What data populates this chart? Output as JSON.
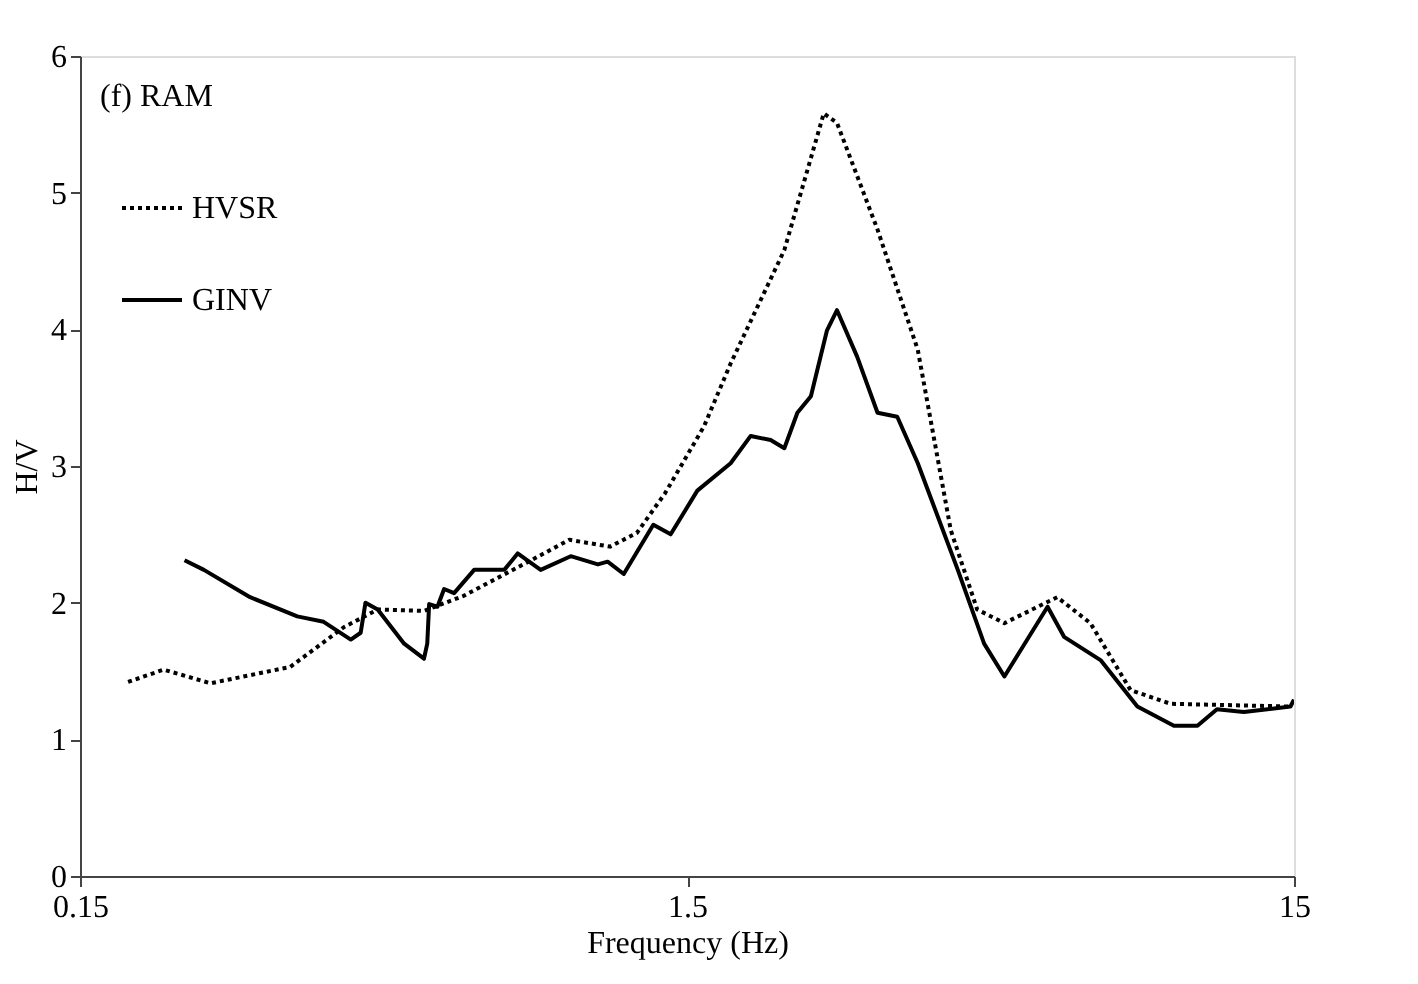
{
  "chart_data": {
    "type": "line",
    "xlabel": "Frequency (Hz)",
    "ylabel": "H/V",
    "annotations": [
      "(f) RAM"
    ],
    "log": "x",
    "xlim": [
      0.15,
      15
    ],
    "xticks": [
      0.15,
      1.5,
      15
    ],
    "ylim": [
      0,
      6
    ],
    "yticks": [
      0,
      1,
      2,
      3,
      4,
      5,
      6
    ],
    "grid": false,
    "legend": "top left",
    "series": [
      {
        "name": "HVSR",
        "color": "#000000",
        "line_style": "dotted",
        "x": [
          0.18,
          0.206,
          0.246,
          0.333,
          0.408,
          0.464,
          0.553,
          0.643,
          0.83,
          0.96,
          1.12,
          1.24,
          1.38,
          1.6,
          1.77,
          2.17,
          2.52,
          2.65,
          3.09,
          3.6,
          4.08,
          4.51,
          5.0,
          6.11,
          6.93,
          8.07,
          9.39,
          14.8
        ],
        "values": [
          1.42,
          1.51,
          1.41,
          1.53,
          1.82,
          1.95,
          1.94,
          2.05,
          2.31,
          2.46,
          2.41,
          2.51,
          2.8,
          3.29,
          3.75,
          4.58,
          5.58,
          5.51,
          4.73,
          3.85,
          2.53,
          1.95,
          1.85,
          2.04,
          1.85,
          1.36,
          1.26,
          1.24
        ]
      },
      {
        "name": "GINV",
        "color": "#000000",
        "line_style": "solid",
        "x": [
          0.223,
          0.24,
          0.286,
          0.342,
          0.378,
          0.419,
          0.435,
          0.443,
          0.464,
          0.513,
          0.553,
          0.56,
          0.564,
          0.582,
          0.597,
          0.62,
          0.669,
          0.75,
          0.789,
          0.861,
          0.965,
          1.07,
          1.11,
          1.18,
          1.32,
          1.41,
          1.56,
          1.77,
          1.91,
          2.06,
          2.17,
          2.28,
          2.4,
          2.55,
          2.65,
          2.86,
          3.09,
          3.33,
          3.6,
          4.19,
          4.63,
          5.0,
          5.89,
          6.27,
          7.2,
          8.28,
          9.51,
          10.4,
          11.2,
          12.4,
          14.8,
          15
        ],
        "values": [
          2.31,
          2.24,
          2.04,
          1.9,
          1.86,
          1.73,
          1.78,
          2.0,
          1.95,
          1.7,
          1.59,
          1.7,
          1.99,
          1.97,
          2.1,
          2.07,
          2.24,
          2.24,
          2.36,
          2.24,
          2.34,
          2.28,
          2.3,
          2.21,
          2.57,
          2.5,
          2.82,
          3.02,
          3.22,
          3.19,
          3.13,
          3.39,
          3.51,
          3.99,
          4.14,
          3.8,
          3.39,
          3.36,
          3.02,
          2.24,
          1.7,
          1.46,
          1.97,
          1.75,
          1.58,
          1.24,
          1.1,
          1.1,
          1.22,
          1.2,
          1.24,
          1.29
        ]
      }
    ]
  }
}
